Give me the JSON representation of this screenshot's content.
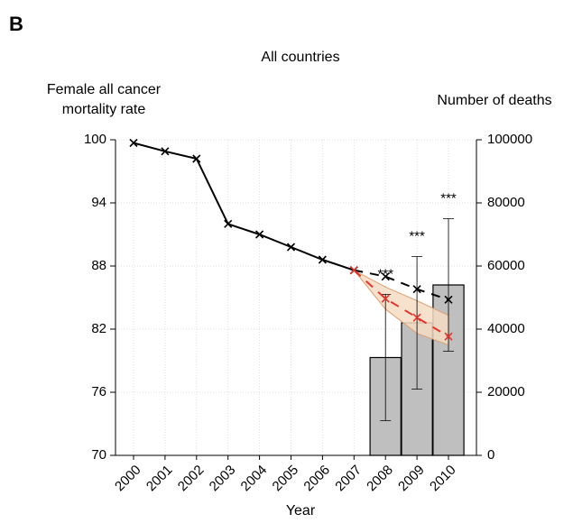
{
  "chart_data": {
    "type": "combo",
    "panel_label": "B",
    "title": "All countries",
    "ylabel": [
      "Female all cancer",
      "mortality rate"
    ],
    "y2label": "Number of deaths",
    "xlabel": "Year",
    "categories": [
      "2000",
      "2001",
      "2002",
      "2003",
      "2004",
      "2005",
      "2006",
      "2007",
      "2008",
      "2009",
      "2010"
    ],
    "ylim": [
      70,
      100
    ],
    "yticks": [
      70,
      76,
      82,
      88,
      94,
      100
    ],
    "y2lim": [
      0,
      100000
    ],
    "y2ticks": [
      0,
      20000,
      40000,
      60000,
      80000,
      100000
    ],
    "grid": true,
    "series": [
      {
        "type": "bar",
        "axis": "y2",
        "color": "#bfbfbf",
        "values": [
          null,
          null,
          null,
          null,
          null,
          null,
          null,
          null,
          31000,
          42000,
          54000
        ],
        "errors": [
          null,
          null,
          null,
          null,
          null,
          null,
          null,
          null,
          20000,
          21000,
          21000
        ]
      },
      {
        "type": "band",
        "color": "#f5dcc4",
        "edge": "#e0a070",
        "lower": [
          null,
          null,
          null,
          null,
          null,
          null,
          null,
          87.6,
          83.9,
          81.6,
          80.5
        ],
        "upper": [
          null,
          null,
          null,
          null,
          null,
          null,
          null,
          87.6,
          86.0,
          84.7,
          83.3
        ]
      },
      {
        "type": "line",
        "color": "#000000",
        "dash": false,
        "values": [
          99.7,
          98.9,
          98.2,
          92.0,
          91.0,
          89.8,
          88.6,
          87.6,
          null,
          null,
          null
        ]
      },
      {
        "type": "line",
        "color": "#000000",
        "dash": true,
        "values": [
          null,
          null,
          null,
          null,
          null,
          null,
          null,
          87.6,
          87.0,
          85.8,
          84.8
        ]
      },
      {
        "type": "line",
        "color": "#e8322a",
        "dash": true,
        "values": [
          null,
          null,
          null,
          null,
          null,
          null,
          null,
          87.6,
          84.9,
          83.1,
          81.3
        ]
      }
    ],
    "annotations": [
      {
        "text": "***",
        "category": "2008"
      },
      {
        "text": "***",
        "category": "2009"
      },
      {
        "text": "***",
        "category": "2010"
      }
    ]
  }
}
